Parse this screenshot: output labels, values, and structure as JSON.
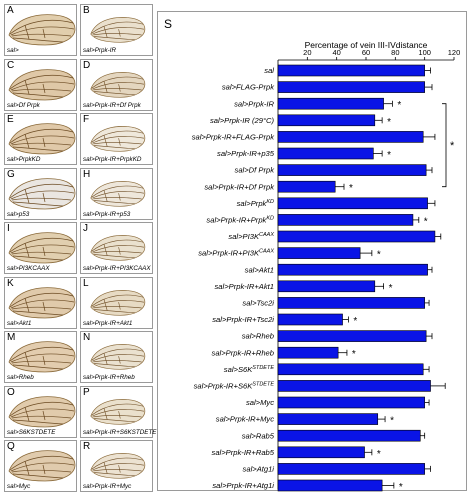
{
  "panels": [
    {
      "letter": "A",
      "caption": "sal>"
    },
    {
      "letter": "B",
      "caption": "sal>Prpk-IR"
    },
    {
      "letter": "C",
      "caption": "sal>Df Prpk"
    },
    {
      "letter": "D",
      "caption": "sal>Prpk-IR+Df Prpk"
    },
    {
      "letter": "E",
      "caption": "sal>PrpkKD"
    },
    {
      "letter": "F",
      "caption": "sal>Prpk-IR+PrpkKD"
    },
    {
      "letter": "G",
      "caption": "sal>p53"
    },
    {
      "letter": "H",
      "caption": "sal>Prpk-IR+p53"
    },
    {
      "letter": "I",
      "caption": "sal>PI3KCAAX"
    },
    {
      "letter": "J",
      "caption": "sal>Prpk-IR+PI3KCAAX"
    },
    {
      "letter": "K",
      "caption": "sal>Akt1"
    },
    {
      "letter": "L",
      "caption": "sal>Prpk-IR+Akt1"
    },
    {
      "letter": "M",
      "caption": "sal>Rheb"
    },
    {
      "letter": "N",
      "caption": "sal>Prpk-IR+Rheb"
    },
    {
      "letter": "O",
      "caption": "sal>S6KSTDETE"
    },
    {
      "letter": "P",
      "caption": "sal>Prpk-IR+S6KSTDETE"
    },
    {
      "letter": "Q",
      "caption": "sal>Myc"
    },
    {
      "letter": "R",
      "caption": "sal>Prpk-IR+Myc"
    }
  ],
  "chart_data": {
    "type": "bar",
    "orientation": "horizontal",
    "panel_letter": "S",
    "title": "Percentage of vein III-IVdistance",
    "xlim": [
      0,
      120
    ],
    "xticks": [
      "20",
      "40",
      "60",
      "80",
      "100",
      "120"
    ],
    "bar_color": "#0a14e6",
    "categories": [
      "sal",
      "sal>FLAG-Prpk",
      "sal>Prpk-IR",
      "sal>Prpk-IR (29°C)",
      "sal>Prpk-IR+FLAG-Prpk",
      "sal>Prpk-IR+p35",
      "sal>Df Prpk",
      "sal>Prpk-IR+Df Prpk",
      "sal>PrpkKD",
      "sal>Prpk-IR+PrpkKD",
      "sal>PI3KCAAX",
      "sal>Prpk-IR+PI3KCAAX",
      "sal>Akt1",
      "sal>Prpk-IR+Akt1",
      "sal>Tsc2i",
      "sal>Prpk-IR+Tsc2i",
      "sal>Rheb",
      "sal>Prpk-IR+Rheb",
      "sal>S6KSTDETE",
      "sal>Prpk-IR+S6KSTDETE",
      "sal>Myc",
      "sal>Prpk-IR+Myc",
      "sal>Rab5",
      "sal>Prpk-IR+Rab5",
      "sal>Atg1i",
      "sal>Prpk-IR+Atg1i"
    ],
    "values": [
      100,
      100,
      72,
      66,
      99,
      65,
      101,
      39,
      102,
      92,
      107,
      56,
      102,
      66,
      100,
      44,
      101,
      41,
      99,
      104,
      100,
      68,
      97,
      59,
      100,
      71
    ],
    "errors": [
      4,
      5,
      6,
      5,
      8,
      6,
      4,
      6,
      5,
      4,
      4,
      8,
      3,
      6,
      3,
      4,
      4,
      6,
      4,
      10,
      3,
      5,
      3,
      5,
      4,
      8
    ],
    "significant": [
      false,
      false,
      true,
      true,
      false,
      true,
      false,
      true,
      false,
      true,
      false,
      true,
      false,
      true,
      false,
      true,
      false,
      true,
      false,
      false,
      false,
      true,
      false,
      true,
      false,
      true
    ],
    "star_symbol": "*"
  }
}
